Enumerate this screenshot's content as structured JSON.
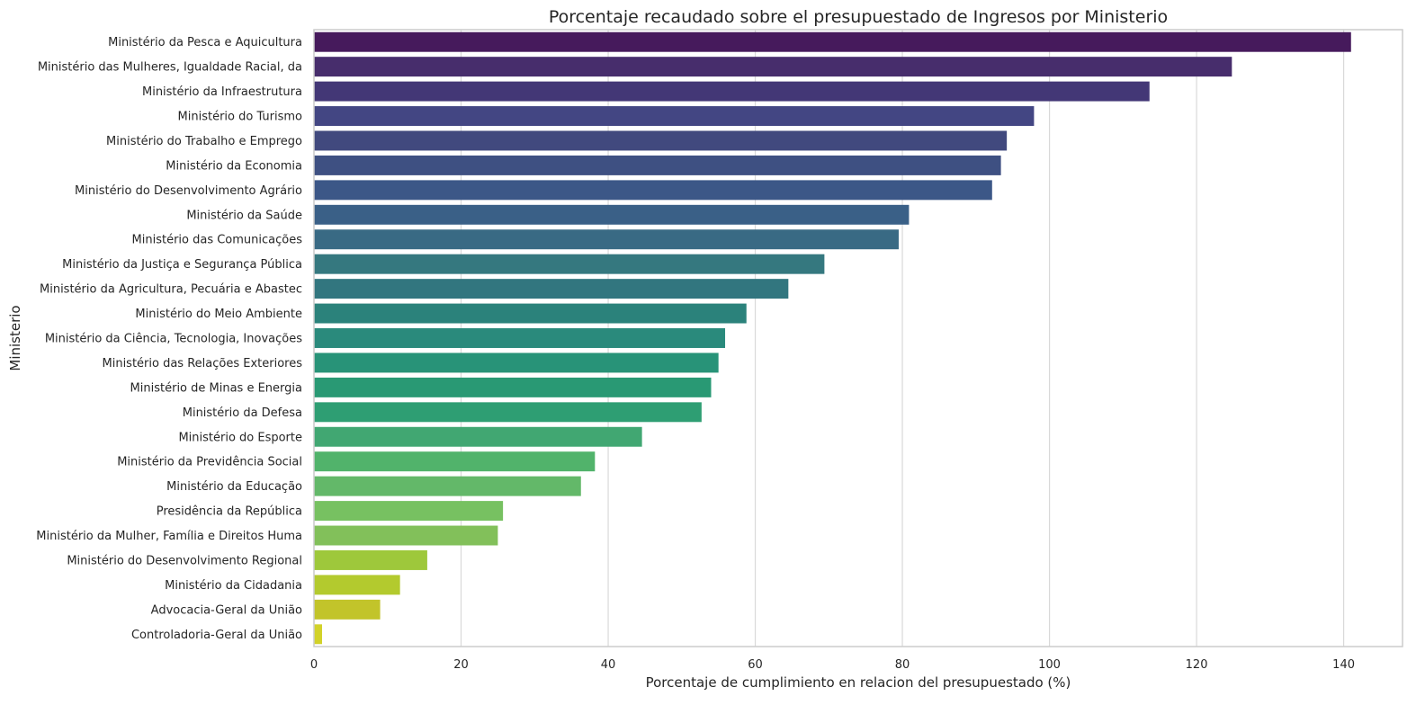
{
  "chart_data": {
    "type": "bar",
    "orientation": "horizontal",
    "title": "Porcentaje recaudado sobre el presupuestado de Ingresos por Ministerio",
    "xlabel": "Porcentaje de cumplimiento en relacion del presupuestado (%)",
    "ylabel": "Ministerio",
    "xlim": [
      0,
      148
    ],
    "xticks": [
      0,
      20,
      40,
      60,
      80,
      100,
      120,
      140
    ],
    "grid": "vertical",
    "palette": "viridis",
    "categories": [
      "Ministério da Pesca e Aquicultura",
      "Ministério das Mulheres, Igualdade Racial, da",
      "Ministério da Infraestrutura",
      "Ministério do Turismo",
      "Ministério do Trabalho e Emprego",
      "Ministério da Economia",
      "Ministério do Desenvolvimento Agrário",
      "Ministério da Saúde",
      "Ministério das Comunicações",
      "Ministério da Justiça e Segurança Pública",
      "Ministério da Agricultura, Pecuária e Abastec",
      "Ministério do Meio Ambiente",
      "Ministério da Ciência, Tecnologia, Inovações",
      "Ministério das Relações Exteriores",
      "Ministério de Minas e Energia",
      "Ministério da Defesa",
      "Ministério do Esporte",
      "Ministério da Previdência Social",
      "Ministério da Educação",
      "Presidência da República",
      "Ministério da Mulher, Família e Direitos Huma",
      "Ministério do Desenvolvimento Regional",
      "Ministério da Cidadania",
      "Advocacia-Geral da União",
      "Controladoria-Geral da União"
    ],
    "values": [
      141.0,
      124.8,
      113.6,
      97.9,
      94.2,
      93.4,
      92.2,
      80.9,
      79.5,
      69.4,
      64.5,
      58.8,
      55.9,
      55.0,
      54.0,
      52.7,
      44.6,
      38.2,
      36.3,
      25.7,
      25.0,
      15.4,
      11.7,
      9.0,
      1.1
    ],
    "colors": [
      "#461a5c",
      "#472d6c",
      "#433776",
      "#434683",
      "#41497e",
      "#3e5082",
      "#3c5787",
      "#3a6087",
      "#396a84",
      "#35787f",
      "#32767f",
      "#2b827b",
      "#2a8a7c",
      "#289378",
      "#299974",
      "#2e9e73",
      "#41a772",
      "#51b36b",
      "#63b869",
      "#77c161",
      "#82c05a",
      "#9ec83b",
      "#b3ca2e",
      "#c2c42a",
      "#d2d229"
    ]
  }
}
